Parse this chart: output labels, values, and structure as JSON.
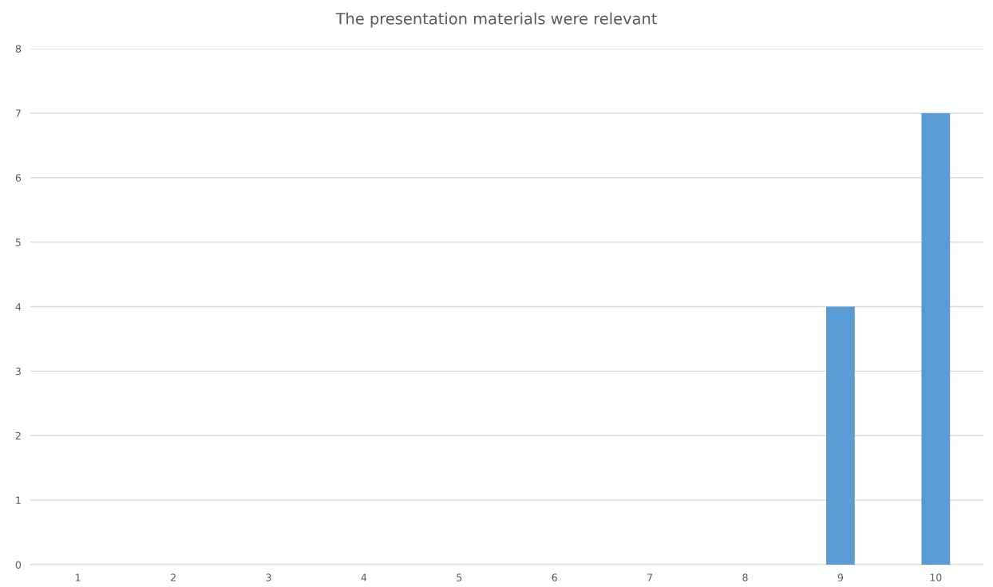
{
  "chart_data": {
    "type": "bar",
    "title": "The presentation materials were relevant",
    "categories": [
      "1",
      "2",
      "3",
      "4",
      "5",
      "6",
      "7",
      "8",
      "9",
      "10"
    ],
    "values": [
      0,
      0,
      0,
      0,
      0,
      0,
      0,
      0,
      4,
      7
    ],
    "color": "#5b9bd5",
    "ylim": [
      0,
      8
    ],
    "yticks": [
      0,
      1,
      2,
      3,
      4,
      5,
      6,
      7,
      8
    ],
    "grid": "y"
  }
}
